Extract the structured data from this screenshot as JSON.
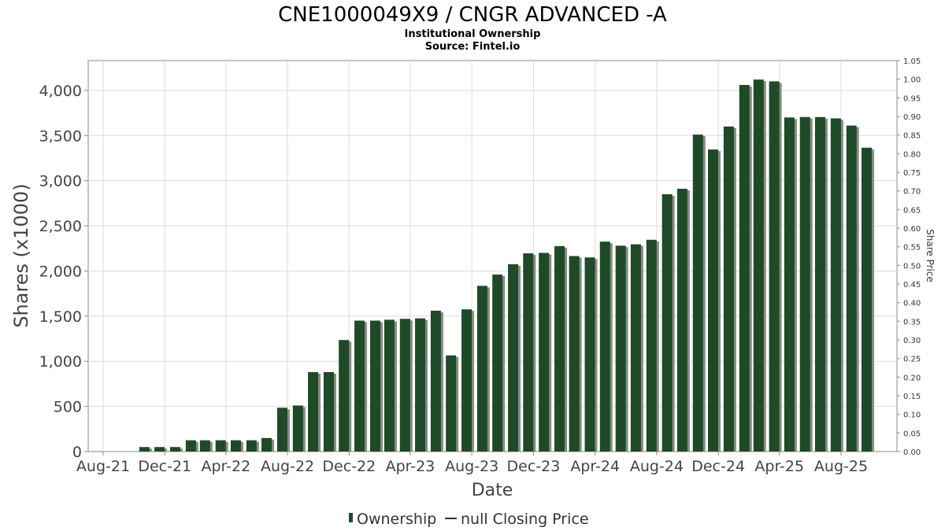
{
  "chart_data": {
    "type": "bar",
    "title": "CNE1000049X9 / CNGR ADVANCED -A",
    "subtitle": "Institutional Ownership",
    "source": "Source: Fintel.io",
    "xlabel": "Date",
    "ylabel": "Shares (x1000)",
    "y2label": "Share Price",
    "x_ticks": [
      "Aug-21",
      "Dec-21",
      "Apr-22",
      "Aug-22",
      "Dec-22",
      "Apr-23",
      "Aug-23",
      "Dec-23",
      "Apr-24",
      "Aug-24",
      "Dec-24",
      "Apr-25",
      "Aug-25"
    ],
    "y_ticks": [
      "0",
      "500",
      "1,000",
      "1,500",
      "2,000",
      "2,500",
      "3,000",
      "3,500",
      "4,000"
    ],
    "y2_ticks": [
      "0.00",
      "0.05",
      "0.10",
      "0.15",
      "0.20",
      "0.25",
      "0.30",
      "0.35",
      "0.40",
      "0.45",
      "0.50",
      "0.55",
      "0.60",
      "0.65",
      "0.70",
      "0.75",
      "0.80",
      "0.85",
      "0.90",
      "0.95",
      "1.00",
      "1.05"
    ],
    "ylim": [
      0,
      4330
    ],
    "y2lim": [
      0,
      1.05
    ],
    "grid": true,
    "legend_position": "bottom",
    "legend": [
      "Ownership",
      "null Closing Price"
    ],
    "bar_color": "#1e4a28",
    "series": [
      {
        "name": "Ownership",
        "x": [
          "2021-10-31",
          "2021-11-30",
          "2021-12-31",
          "2022-01-31",
          "2022-02-28",
          "2022-03-31",
          "2022-04-30",
          "2022-05-31",
          "2022-06-30",
          "2022-07-31",
          "2022-08-31",
          "2022-09-30",
          "2022-10-31",
          "2022-11-30",
          "2022-12-31",
          "2023-01-31",
          "2023-02-28",
          "2023-03-31",
          "2023-04-30",
          "2023-05-31",
          "2023-06-30",
          "2023-07-31",
          "2023-08-31",
          "2023-09-30",
          "2023-10-31",
          "2023-11-30",
          "2023-12-31",
          "2024-01-31",
          "2024-02-29",
          "2024-03-31",
          "2024-04-30",
          "2024-05-31",
          "2024-06-30",
          "2024-07-31",
          "2024-08-31",
          "2024-09-30",
          "2024-10-31",
          "2024-11-30",
          "2024-12-31",
          "2025-01-31",
          "2025-02-28",
          "2025-03-31",
          "2025-04-30",
          "2025-05-31",
          "2025-06-30",
          "2025-07-31",
          "2025-08-31",
          "2025-09-30"
        ],
        "values": [
          50,
          50,
          50,
          125,
          125,
          125,
          125,
          125,
          150,
          485,
          510,
          880,
          880,
          1235,
          1450,
          1450,
          1460,
          1470,
          1475,
          1560,
          1065,
          1575,
          1835,
          1960,
          2075,
          2195,
          2200,
          2275,
          2165,
          2150,
          2325,
          2280,
          2295,
          2345,
          2850,
          2910,
          3510,
          3345,
          3600,
          4060,
          4120,
          4100,
          3700,
          3705,
          3705,
          3690,
          3610,
          3365
        ]
      }
    ]
  }
}
